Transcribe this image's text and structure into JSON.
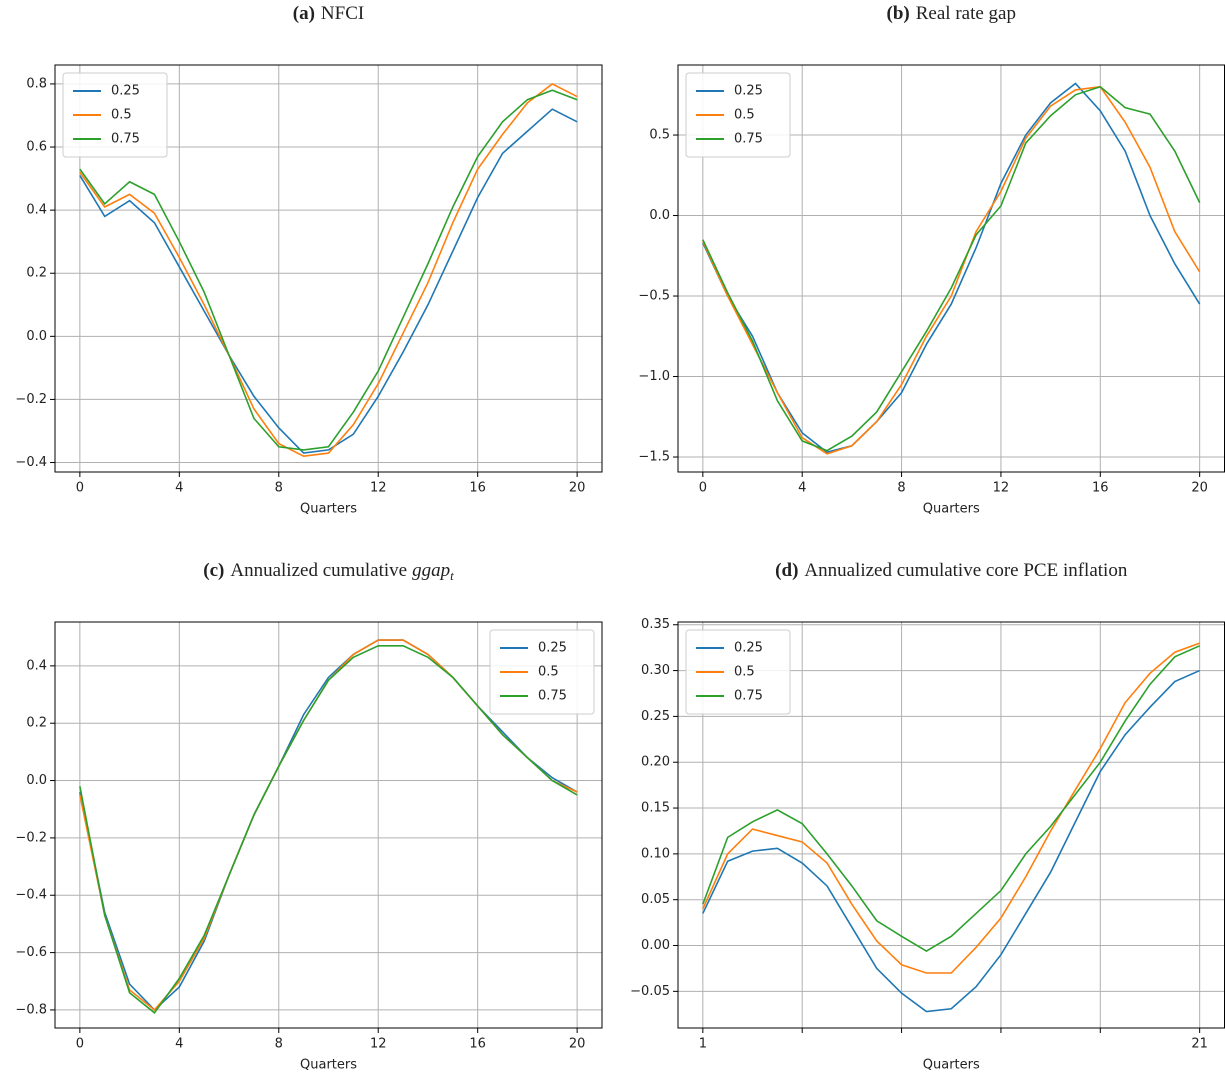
{
  "chart_data": [
    {
      "type": "line",
      "label": "(a)",
      "title": "NFCI",
      "xlabel": "Quarters",
      "x": [
        0,
        1,
        2,
        3,
        4,
        5,
        6,
        7,
        8,
        9,
        10,
        11,
        12,
        13,
        14,
        15,
        16,
        17,
        18,
        19,
        20
      ],
      "xlim": [
        -1,
        21
      ],
      "xticks": [
        0,
        4,
        8,
        12,
        16,
        20
      ],
      "ylim": [
        -0.43,
        0.86
      ],
      "yticks": [
        {
          "value": -0.4,
          "label": "−0.4"
        },
        {
          "value": -0.2,
          "label": "−0.2"
        },
        {
          "value": 0,
          "label": "0.0"
        },
        0.2,
        0.4,
        0.6,
        0.8
      ],
      "grid": true,
      "legend": "upper-left",
      "series": [
        {
          "name": "0.25",
          "color": "#1f77b4",
          "values": [
            0.51,
            0.38,
            0.43,
            0.36,
            0.22,
            0.08,
            -0.06,
            -0.19,
            -0.29,
            -0.37,
            -0.36,
            -0.31,
            -0.19,
            -0.05,
            0.1,
            0.27,
            0.44,
            0.58,
            0.65,
            0.72,
            0.68
          ]
        },
        {
          "name": "0.5",
          "color": "#ff7f0e",
          "values": [
            0.52,
            0.41,
            0.45,
            0.39,
            0.25,
            0.1,
            -0.06,
            -0.23,
            -0.34,
            -0.38,
            -0.37,
            -0.28,
            -0.15,
            0.01,
            0.17,
            0.36,
            0.53,
            0.64,
            0.74,
            0.8,
            0.76
          ]
        },
        {
          "name": "0.75",
          "color": "#2ca02c",
          "values": [
            0.53,
            0.42,
            0.49,
            0.45,
            0.3,
            0.14,
            -0.06,
            -0.26,
            -0.35,
            -0.36,
            -0.35,
            -0.24,
            -0.11,
            0.06,
            0.23,
            0.41,
            0.57,
            0.68,
            0.75,
            0.78,
            0.75
          ]
        }
      ]
    },
    {
      "type": "line",
      "label": "(b)",
      "title": "Real rate gap",
      "xlabel": "Quarters",
      "x": [
        0,
        1,
        2,
        3,
        4,
        5,
        6,
        7,
        8,
        9,
        10,
        11,
        12,
        13,
        14,
        15,
        16,
        17,
        18,
        19,
        20
      ],
      "xlim": [
        -1,
        21
      ],
      "xticks": [
        0,
        4,
        8,
        12,
        16,
        20
      ],
      "ylim": [
        -1.593,
        0.935
      ],
      "yticks": [
        {
          "value": -1.5,
          "label": "−1.5"
        },
        {
          "value": -1,
          "label": "−1.0"
        },
        {
          "value": -0.5,
          "label": "−0.5"
        },
        {
          "value": 0,
          "label": "0.0"
        },
        0.5
      ],
      "grid": true,
      "legend": "upper-left",
      "series": [
        {
          "name": "0.25",
          "color": "#1f77b4",
          "values": [
            -0.17,
            -0.5,
            -0.75,
            -1.1,
            -1.35,
            -1.47,
            -1.43,
            -1.28,
            -1.1,
            -0.8,
            -0.55,
            -0.2,
            0.2,
            0.5,
            0.7,
            0.82,
            0.65,
            0.4,
            0.0,
            -0.3,
            -0.55
          ]
        },
        {
          "name": "0.5",
          "color": "#ff7f0e",
          "values": [
            -0.16,
            -0.5,
            -0.8,
            -1.1,
            -1.38,
            -1.48,
            -1.43,
            -1.28,
            -1.05,
            -0.75,
            -0.5,
            -0.1,
            0.15,
            0.48,
            0.68,
            0.78,
            0.8,
            0.58,
            0.3,
            -0.1,
            -0.35
          ]
        },
        {
          "name": "0.75",
          "color": "#2ca02c",
          "values": [
            -0.15,
            -0.48,
            -0.78,
            -1.15,
            -1.4,
            -1.46,
            -1.37,
            -1.22,
            -0.97,
            -0.72,
            -0.45,
            -0.12,
            0.06,
            0.45,
            0.62,
            0.75,
            0.8,
            0.67,
            0.63,
            0.4,
            0.08
          ]
        }
      ]
    },
    {
      "type": "line",
      "label": "(c)",
      "title": "Annualized cumulative",
      "title_math": "ggap",
      "title_sub": "t",
      "xlabel": "Quarters",
      "x": [
        0,
        1,
        2,
        3,
        4,
        5,
        6,
        7,
        8,
        9,
        10,
        11,
        12,
        13,
        14,
        15,
        16,
        17,
        18,
        19,
        20
      ],
      "xlim": [
        -1,
        21
      ],
      "xticks": [
        0,
        4,
        8,
        12,
        16,
        20
      ],
      "ylim": [
        -0.863,
        0.553
      ],
      "yticks": [
        {
          "value": -0.8,
          "label": "−0.8"
        },
        {
          "value": -0.6,
          "label": "−0.6"
        },
        {
          "value": -0.4,
          "label": "−0.4"
        },
        {
          "value": -0.2,
          "label": "−0.2"
        },
        {
          "value": 0,
          "label": "0.0"
        },
        0.2,
        0.4
      ],
      "grid": true,
      "legend": "upper-right",
      "series": [
        {
          "name": "0.25",
          "color": "#1f77b4",
          "values": [
            -0.04,
            -0.46,
            -0.71,
            -0.8,
            -0.72,
            -0.56,
            -0.33,
            -0.12,
            0.05,
            0.23,
            0.36,
            0.44,
            0.49,
            0.49,
            0.44,
            0.36,
            0.26,
            0.17,
            0.08,
            0.01,
            -0.04
          ]
        },
        {
          "name": "0.5",
          "color": "#ff7f0e",
          "values": [
            -0.05,
            -0.47,
            -0.73,
            -0.8,
            -0.7,
            -0.55,
            -0.33,
            -0.12,
            0.05,
            0.21,
            0.35,
            0.44,
            0.49,
            0.49,
            0.44,
            0.36,
            0.26,
            0.16,
            0.08,
            0.0,
            -0.04
          ]
        },
        {
          "name": "0.75",
          "color": "#2ca02c",
          "values": [
            -0.02,
            -0.47,
            -0.74,
            -0.81,
            -0.69,
            -0.54,
            -0.33,
            -0.12,
            0.05,
            0.21,
            0.35,
            0.43,
            0.47,
            0.47,
            0.43,
            0.36,
            0.26,
            0.16,
            0.08,
            0.0,
            -0.05
          ]
        }
      ]
    },
    {
      "type": "line",
      "label": "(d)",
      "title": "Annualized cumulative core PCE inflation",
      "xlabel": "Quarters",
      "x": [
        1,
        2,
        3,
        4,
        5,
        6,
        7,
        8,
        9,
        10,
        11,
        12,
        13,
        14,
        15,
        16,
        17,
        18,
        19,
        20,
        21
      ],
      "xlim": [
        0,
        22
      ],
      "xticks": [
        1,
        {
          "value": 5,
          "label": null
        },
        {
          "value": 9,
          "label": null
        },
        {
          "value": 13,
          "label": null
        },
        {
          "value": 17,
          "label": null
        },
        21
      ],
      "ylim": [
        -0.09,
        0.353
      ],
      "yticks": [
        {
          "value": -0.05,
          "label": "−0.05"
        },
        {
          "value": 0,
          "label": "0.00"
        },
        0.05,
        {
          "value": 0.1,
          "label": "0.10"
        },
        0.15,
        {
          "value": 0.2,
          "label": "0.20"
        },
        0.25,
        {
          "value": 0.3,
          "label": "0.30"
        },
        0.35
      ],
      "grid": true,
      "legend": "upper-left",
      "series": [
        {
          "name": "0.25",
          "color": "#1f77b4",
          "values": [
            0.035,
            0.092,
            0.103,
            0.106,
            0.09,
            0.065,
            0.02,
            -0.025,
            -0.052,
            -0.072,
            -0.069,
            -0.045,
            -0.01,
            0.035,
            0.08,
            0.135,
            0.19,
            0.23,
            0.26,
            0.288,
            0.3
          ]
        },
        {
          "name": "0.5",
          "color": "#ff7f0e",
          "values": [
            0.04,
            0.1,
            0.127,
            0.12,
            0.113,
            0.09,
            0.045,
            0.005,
            -0.021,
            -0.03,
            -0.03,
            -0.002,
            0.03,
            0.075,
            0.125,
            0.17,
            0.215,
            0.265,
            0.297,
            0.32,
            0.33
          ]
        },
        {
          "name": "0.75",
          "color": "#2ca02c",
          "values": [
            0.045,
            0.118,
            0.135,
            0.148,
            0.133,
            0.1,
            0.065,
            0.027,
            0.01,
            -0.006,
            0.01,
            0.035,
            0.06,
            0.1,
            0.13,
            0.165,
            0.2,
            0.245,
            0.285,
            0.315,
            0.327
          ]
        }
      ]
    }
  ]
}
